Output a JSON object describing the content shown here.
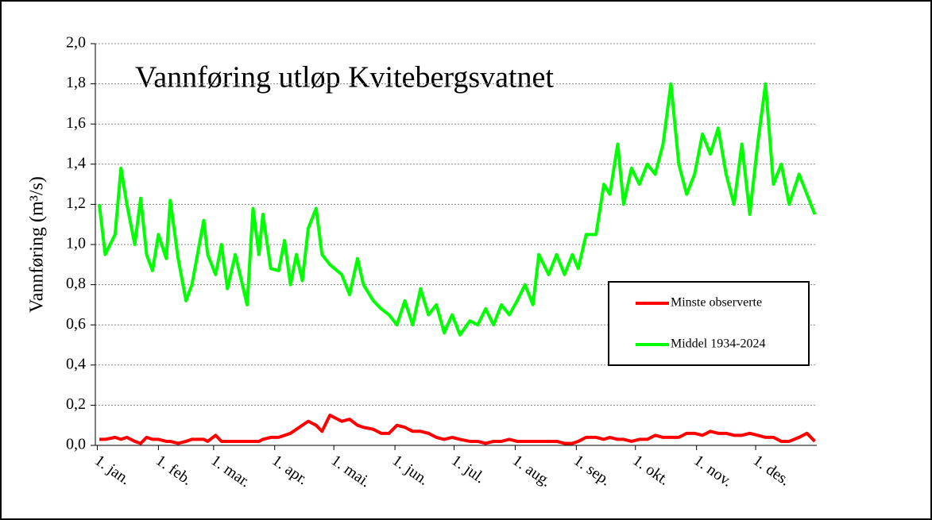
{
  "chart_data": {
    "type": "line",
    "title": "Vannføring utløp Kvitebergsvatnet",
    "y_label": "Vannføring (m³/s)",
    "x": [
      2,
      5,
      10,
      13,
      16,
      20,
      23,
      26,
      29,
      32,
      36,
      38,
      42,
      46,
      49,
      55,
      57,
      61,
      64,
      67,
      71,
      77,
      80,
      83,
      85,
      89,
      93,
      96,
      99,
      102,
      105,
      108,
      112,
      115,
      119,
      125,
      129,
      133,
      136,
      141,
      145,
      149,
      153,
      157,
      161,
      165,
      169,
      173,
      177,
      181,
      185,
      190,
      194,
      198,
      202,
      206,
      210,
      214,
      218,
      222,
      225,
      230,
      234,
      238,
      242,
      245,
      249,
      254,
      258,
      261,
      265,
      268,
      272,
      276,
      280,
      284,
      288,
      292,
      296,
      300,
      304,
      308,
      312,
      316,
      320,
      324,
      328,
      332,
      336,
      340,
      344,
      348,
      352,
      357,
      361,
      365
    ],
    "series": [
      {
        "name": "Minste observerte",
        "color": "#ff0000",
        "values": [
          0.03,
          0.03,
          0.04,
          0.03,
          0.04,
          0.02,
          0.01,
          0.04,
          0.03,
          0.03,
          0.02,
          0.02,
          0.01,
          0.02,
          0.03,
          0.03,
          0.02,
          0.05,
          0.02,
          0.02,
          0.02,
          0.02,
          0.02,
          0.02,
          0.03,
          0.04,
          0.04,
          0.05,
          0.06,
          0.08,
          0.1,
          0.12,
          0.1,
          0.07,
          0.15,
          0.12,
          0.13,
          0.1,
          0.09,
          0.08,
          0.06,
          0.06,
          0.1,
          0.09,
          0.07,
          0.07,
          0.06,
          0.04,
          0.03,
          0.04,
          0.03,
          0.02,
          0.02,
          0.01,
          0.02,
          0.02,
          0.03,
          0.02,
          0.02,
          0.02,
          0.02,
          0.02,
          0.02,
          0.01,
          0.01,
          0.02,
          0.04,
          0.04,
          0.03,
          0.04,
          0.03,
          0.03,
          0.02,
          0.03,
          0.03,
          0.05,
          0.04,
          0.04,
          0.04,
          0.06,
          0.06,
          0.05,
          0.07,
          0.06,
          0.06,
          0.05,
          0.05,
          0.06,
          0.05,
          0.04,
          0.04,
          0.02,
          0.02,
          0.04,
          0.06,
          0.02
        ]
      },
      {
        "name": "Middel 1934-2024",
        "color": "#00ff00",
        "values": [
          1.2,
          0.95,
          1.05,
          1.38,
          1.2,
          1.0,
          1.23,
          0.95,
          0.87,
          1.05,
          0.93,
          1.22,
          0.93,
          0.72,
          0.8,
          1.12,
          0.95,
          0.85,
          1.0,
          0.78,
          0.95,
          0.7,
          1.18,
          0.95,
          1.15,
          0.88,
          0.87,
          1.02,
          0.8,
          0.95,
          0.82,
          1.08,
          1.18,
          0.95,
          0.9,
          0.85,
          0.75,
          0.93,
          0.8,
          0.72,
          0.68,
          0.65,
          0.6,
          0.72,
          0.6,
          0.78,
          0.65,
          0.7,
          0.56,
          0.65,
          0.55,
          0.62,
          0.6,
          0.68,
          0.6,
          0.7,
          0.65,
          0.72,
          0.8,
          0.7,
          0.95,
          0.85,
          0.95,
          0.85,
          0.95,
          0.88,
          1.05,
          1.05,
          1.3,
          1.25,
          1.5,
          1.2,
          1.38,
          1.3,
          1.4,
          1.35,
          1.5,
          1.8,
          1.4,
          1.25,
          1.35,
          1.55,
          1.45,
          1.58,
          1.35,
          1.2,
          1.5,
          1.15,
          1.5,
          1.8,
          1.3,
          1.4,
          1.2,
          1.35,
          1.25,
          1.15
        ]
      }
    ],
    "xlim": [
      0,
      366
    ],
    "xticks": [
      {
        "value": 1,
        "label": "1. jan."
      },
      {
        "value": 32,
        "label": "1. feb."
      },
      {
        "value": 60,
        "label": "1. mar."
      },
      {
        "value": 91,
        "label": "1. apr."
      },
      {
        "value": 121,
        "label": "1. mai."
      },
      {
        "value": 152,
        "label": "1. jun."
      },
      {
        "value": 182,
        "label": "1. jul."
      },
      {
        "value": 213,
        "label": "1. aug."
      },
      {
        "value": 244,
        "label": "1. sep."
      },
      {
        "value": 274,
        "label": "1. okt."
      },
      {
        "value": 305,
        "label": "1. nov."
      },
      {
        "value": 335,
        "label": "1. des."
      }
    ],
    "ylim": [
      0,
      2
    ],
    "yticks": [
      {
        "value": 0,
        "label": "0,0"
      },
      {
        "value": 0.2,
        "label": "0,2"
      },
      {
        "value": 0.4,
        "label": "0,4"
      },
      {
        "value": 0.6,
        "label": "0,6"
      },
      {
        "value": 0.8,
        "label": "0,8"
      },
      {
        "value": 1,
        "label": "1,0"
      },
      {
        "value": 1.2,
        "label": "1,2"
      },
      {
        "value": 1.4,
        "label": "1,4"
      },
      {
        "value": 1.6,
        "label": "1,6"
      },
      {
        "value": 1.8,
        "label": "1,8"
      },
      {
        "value": 2,
        "label": "2,0"
      }
    ],
    "grid": true
  }
}
